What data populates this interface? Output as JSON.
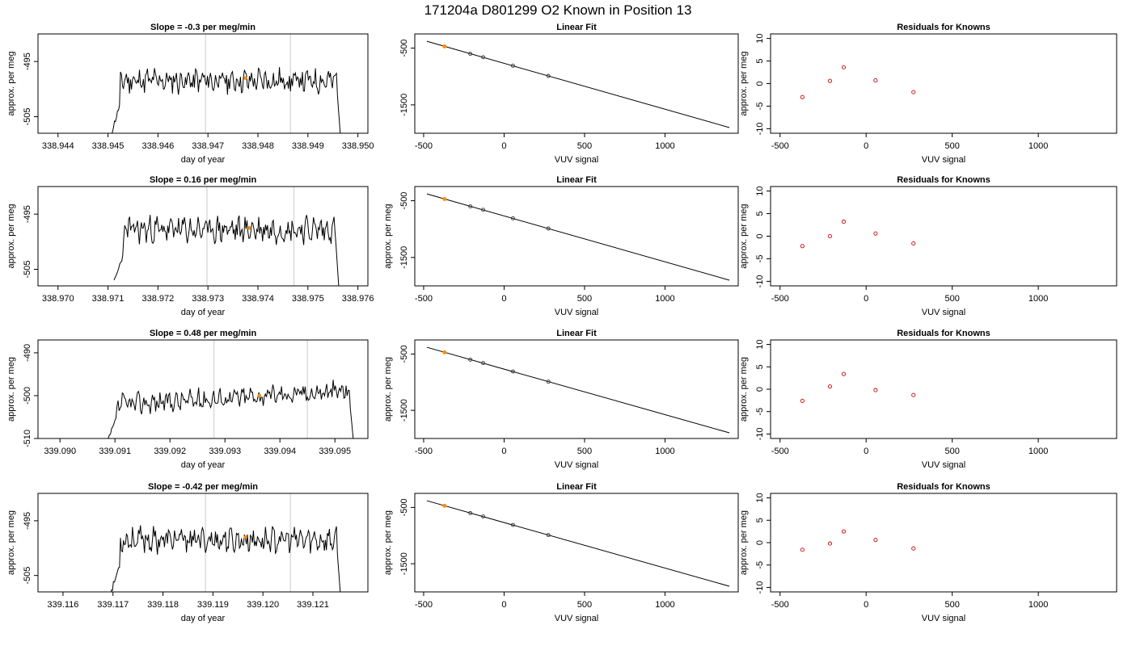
{
  "figure": {
    "suptitle": "171204a     D801299   O2 Known in Position  13"
  },
  "colors": {
    "trace": "#000000",
    "vline": "#d3d3d3",
    "highlight": "#ff8c00",
    "fit_point": "#333333",
    "residual_point": "#cc0000"
  },
  "chart_data": [
    {
      "type": "line",
      "row": 0,
      "col": 0,
      "title": "Slope =  -0.3  per meg/min",
      "xlabel": "day of year",
      "ylabel": "approx. per meg",
      "xlim": [
        338.9436,
        338.9502
      ],
      "ylim": [
        -508,
        -490
      ],
      "xticks": [
        338.944,
        338.945,
        338.946,
        338.947,
        338.948,
        338.949,
        338.95
      ],
      "xtick_labels": [
        "338.944",
        "338.945",
        "338.946",
        "338.947",
        "338.948",
        "338.949",
        "338.950"
      ],
      "yticks": [
        -495,
        -505
      ],
      "ytick_labels": [
        "-495",
        "-505"
      ],
      "vlines": [
        338.94695,
        338.94865
      ],
      "highlight": [
        338.94775,
        -498
      ],
      "trace": {
        "start": 338.94505,
        "end": 338.94965,
        "level": -498.5,
        "lead_from": -508.5,
        "lead_to": -502.5,
        "tail_to": -508.5,
        "amp": 2.2,
        "seed": 11
      }
    },
    {
      "type": "line",
      "row": 0,
      "col": 1,
      "title": "Linear Fit",
      "xlabel": "VUV signal",
      "ylabel": "",
      "xlim": [
        -555,
        1455
      ],
      "ylim": [
        -2000,
        -250
      ],
      "xticks": [
        -500,
        0,
        500,
        1000
      ],
      "xtick_labels": [
        "-500",
        "0",
        "500",
        "1000"
      ],
      "yticks": [
        -500,
        -1500
      ],
      "ytick_labels": [
        "-500",
        "-1500"
      ],
      "line": {
        "x": [
          -480,
          1400
        ],
        "y": [
          -380,
          -1900
        ]
      },
      "points": {
        "x": [
          -370,
          -210,
          -130,
          55,
          275
        ],
        "y": [
          -470,
          -600,
          -660,
          -810,
          -990
        ]
      },
      "highlight_index": 0
    },
    {
      "type": "scatter",
      "row": 0,
      "col": 2,
      "title": "Residuals for Knowns",
      "xlabel": "VUV signal",
      "ylabel": "approx. per meg",
      "xlim": [
        -555,
        1455
      ],
      "ylim": [
        -11,
        11
      ],
      "xticks": [
        -500,
        0,
        500,
        1000
      ],
      "xtick_labels": [
        "-500",
        "0",
        "500",
        "1000"
      ],
      "yticks": [
        -10,
        -5,
        0,
        5,
        10
      ],
      "ytick_labels": [
        "-10",
        "-5",
        "0",
        "5",
        "10"
      ],
      "points": {
        "x": [
          -370,
          -210,
          -130,
          55,
          275
        ],
        "y": [
          -3.0,
          0.6,
          3.6,
          0.7,
          -1.9
        ]
      }
    },
    {
      "type": "line",
      "row": 1,
      "col": 0,
      "title": "Slope =  0.16  per meg/min",
      "xlabel": "day of year",
      "ylabel": "approx. per meg",
      "xlim": [
        338.9696,
        338.9762
      ],
      "ylim": [
        -508,
        -490
      ],
      "xticks": [
        338.97,
        338.971,
        338.972,
        338.973,
        338.974,
        338.975,
        338.976
      ],
      "xtick_labels": [
        "338.970",
        "338.971",
        "338.972",
        "338.973",
        "338.974",
        "338.975",
        "338.976"
      ],
      "yticks": [
        -495,
        -505
      ],
      "ytick_labels": [
        "-495",
        "-505"
      ],
      "vlines": [
        338.97298,
        338.97472
      ],
      "highlight": [
        338.97383,
        -497.5
      ],
      "trace": {
        "start": 338.97112,
        "end": 338.97562,
        "level": -497.8,
        "lead_from": -507.5,
        "lead_to": -502.0,
        "tail_to": -508.5,
        "amp": 2.3,
        "seed": 23
      }
    },
    {
      "type": "line",
      "row": 1,
      "col": 1,
      "title": "Linear Fit",
      "xlabel": "VUV signal",
      "ylabel": "approx. per meg",
      "xlim": [
        -555,
        1455
      ],
      "ylim": [
        -2000,
        -250
      ],
      "xticks": [
        -500,
        0,
        500,
        1000
      ],
      "xtick_labels": [
        "-500",
        "0",
        "500",
        "1000"
      ],
      "yticks": [
        -500,
        -1500
      ],
      "ytick_labels": [
        "-500",
        "-1500"
      ],
      "line": {
        "x": [
          -480,
          1400
        ],
        "y": [
          -380,
          -1900
        ]
      },
      "points": {
        "x": [
          -370,
          -210,
          -130,
          55,
          275
        ],
        "y": [
          -470,
          -600,
          -660,
          -810,
          -990
        ]
      },
      "highlight_index": 0
    },
    {
      "type": "scatter",
      "row": 1,
      "col": 2,
      "title": "Residuals for Knowns",
      "xlabel": "VUV signal",
      "ylabel": "approx. per meg",
      "xlim": [
        -555,
        1455
      ],
      "ylim": [
        -11,
        11
      ],
      "xticks": [
        -500,
        0,
        500,
        1000
      ],
      "xtick_labels": [
        "-500",
        "0",
        "500",
        "1000"
      ],
      "yticks": [
        -10,
        -5,
        0,
        5,
        10
      ],
      "ytick_labels": [
        "-10",
        "-5",
        "0",
        "5",
        "10"
      ],
      "points": {
        "x": [
          -370,
          -210,
          -130,
          55,
          275
        ],
        "y": [
          -2.2,
          0.0,
          3.2,
          0.6,
          -1.6
        ]
      }
    },
    {
      "type": "line",
      "row": 2,
      "col": 0,
      "title": "Slope =  0.48  per meg/min",
      "xlabel": "day of year",
      "ylabel": "approx. per meg",
      "xlim": [
        339.0896,
        339.0956
      ],
      "ylim": [
        -510,
        -487
      ],
      "xticks": [
        339.09,
        339.091,
        339.092,
        339.093,
        339.094,
        339.095
      ],
      "xtick_labels": [
        "339.090",
        "339.091",
        "339.092",
        "339.093",
        "339.094",
        "339.095"
      ],
      "yticks": [
        -490,
        -500,
        -510
      ],
      "ytick_labels": [
        "-490",
        "-500",
        "-510"
      ],
      "vlines": [
        339.0928,
        339.0945
      ],
      "highlight": [
        339.09363,
        -500
      ],
      "trace": {
        "start": 339.09084,
        "end": 339.09534,
        "level": -500.5,
        "lead_from": -511.5,
        "lead_to": -505.0,
        "tail_to": -511.0,
        "amp": 2.4,
        "seed": 37,
        "drift": 3.5
      }
    },
    {
      "type": "line",
      "row": 2,
      "col": 1,
      "title": "Linear Fit",
      "xlabel": "VUV signal",
      "ylabel": "approx. per meg",
      "xlim": [
        -555,
        1455
      ],
      "ylim": [
        -2000,
        -250
      ],
      "xticks": [
        -500,
        0,
        500,
        1000
      ],
      "xtick_labels": [
        "-500",
        "0",
        "500",
        "1000"
      ],
      "yticks": [
        -500,
        -1500
      ],
      "ytick_labels": [
        "-500",
        "-1500"
      ],
      "line": {
        "x": [
          -480,
          1400
        ],
        "y": [
          -380,
          -1900
        ]
      },
      "points": {
        "x": [
          -370,
          -210,
          -130,
          55,
          275
        ],
        "y": [
          -470,
          -600,
          -660,
          -810,
          -990
        ]
      },
      "highlight_index": 0
    },
    {
      "type": "scatter",
      "row": 2,
      "col": 2,
      "title": "Residuals for Knowns",
      "xlabel": "VUV signal",
      "ylabel": "approx. per meg",
      "xlim": [
        -555,
        1455
      ],
      "ylim": [
        -11,
        11
      ],
      "xticks": [
        -500,
        0,
        500,
        1000
      ],
      "xtick_labels": [
        "-500",
        "0",
        "500",
        "1000"
      ],
      "yticks": [
        -10,
        -5,
        0,
        5,
        10
      ],
      "ytick_labels": [
        "-10",
        "-5",
        "0",
        "5",
        "10"
      ],
      "points": {
        "x": [
          -370,
          -210,
          -130,
          55,
          275
        ],
        "y": [
          -2.6,
          0.6,
          3.4,
          -0.2,
          -1.3
        ]
      }
    },
    {
      "type": "line",
      "row": 3,
      "col": 0,
      "title": "Slope =  -0.42  per meg/min",
      "xlabel": "day of year",
      "ylabel": "approx. per meg",
      "xlim": [
        339.1155,
        339.1221
      ],
      "ylim": [
        -508,
        -490
      ],
      "xticks": [
        339.116,
        339.117,
        339.118,
        339.119,
        339.12,
        339.121
      ],
      "xtick_labels": [
        "339.116",
        "339.117",
        "339.118",
        "339.119",
        "339.120",
        "339.121"
      ],
      "yticks": [
        -495,
        -505
      ],
      "ytick_labels": [
        "-495",
        "-505"
      ],
      "vlines": [
        339.11885,
        339.12055
      ],
      "highlight": [
        339.11965,
        -498
      ],
      "trace": {
        "start": 339.11695,
        "end": 339.12155,
        "level": -498.5,
        "lead_from": -508.5,
        "lead_to": -502.5,
        "tail_to": -508.5,
        "amp": 2.2,
        "seed": 53
      }
    },
    {
      "type": "line",
      "row": 3,
      "col": 1,
      "title": "Linear Fit",
      "xlabel": "VUV signal",
      "ylabel": "approx. per meg",
      "xlim": [
        -555,
        1455
      ],
      "ylim": [
        -2000,
        -250
      ],
      "xticks": [
        -500,
        0,
        500,
        1000
      ],
      "xtick_labels": [
        "-500",
        "0",
        "500",
        "1000"
      ],
      "yticks": [
        -500,
        -1500
      ],
      "ytick_labels": [
        "-500",
        "-1500"
      ],
      "line": {
        "x": [
          -480,
          1400
        ],
        "y": [
          -380,
          -1900
        ]
      },
      "points": {
        "x": [
          -370,
          -210,
          -130,
          55,
          275
        ],
        "y": [
          -470,
          -600,
          -660,
          -810,
          -990
        ]
      },
      "highlight_index": 0
    },
    {
      "type": "scatter",
      "row": 3,
      "col": 2,
      "title": "Residuals for Knowns",
      "xlabel": "VUV signal",
      "ylabel": "approx. per meg",
      "xlim": [
        -555,
        1455
      ],
      "ylim": [
        -11,
        11
      ],
      "xticks": [
        -500,
        0,
        500,
        1000
      ],
      "xtick_labels": [
        "-500",
        "0",
        "500",
        "1000"
      ],
      "yticks": [
        -10,
        -5,
        0,
        5,
        10
      ],
      "ytick_labels": [
        "-10",
        "-5",
        "0",
        "5",
        "10"
      ],
      "points": {
        "x": [
          -370,
          -210,
          -130,
          55,
          275
        ],
        "y": [
          -1.6,
          -0.2,
          2.5,
          0.6,
          -1.3
        ]
      }
    }
  ]
}
